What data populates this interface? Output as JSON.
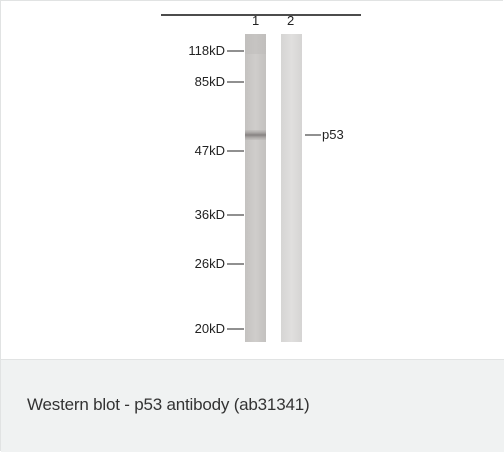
{
  "figure": {
    "lanes": [
      "1",
      "2"
    ],
    "markers": [
      "118kD",
      "85kD",
      "47kD",
      "36kD",
      "26kD",
      "20kD"
    ],
    "band_label": "p53"
  },
  "caption": {
    "text": "Western blot - p53 antibody (ab31341)"
  },
  "colors": {
    "caption_background": "#f0f2f2",
    "border": "#e1e3e3",
    "lane_1": "#c8c6c4",
    "lane_2": "#d8d7d6",
    "band": "#8b8684"
  }
}
